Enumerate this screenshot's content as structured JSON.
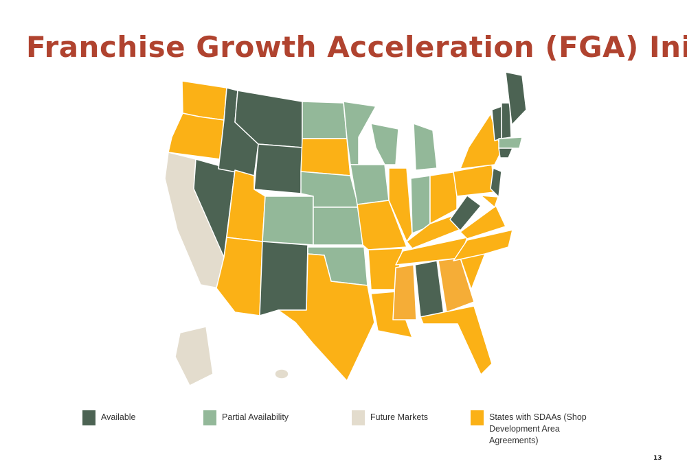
{
  "header": {
    "title": "Franchise Growth Acceleration (FGA) Initiative"
  },
  "legend": [
    {
      "label": "Available",
      "color": "#4c6353"
    },
    {
      "label": "Partial Availability",
      "color": "#93b899"
    },
    {
      "label": "Future Markets",
      "color": "#e3dccd"
    },
    {
      "label": "States with SDAAs (Shop Development Area Agreements)",
      "color": "#fbb116"
    }
  ],
  "page_number": "13"
}
